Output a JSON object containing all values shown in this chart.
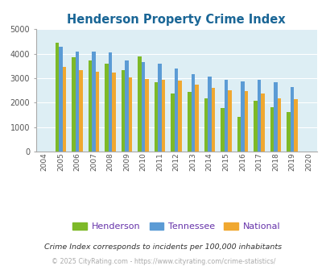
{
  "title": "Henderson Property Crime Index",
  "years": [
    2004,
    2005,
    2006,
    2007,
    2008,
    2009,
    2010,
    2011,
    2012,
    2013,
    2014,
    2015,
    2016,
    2017,
    2018,
    2019,
    2020
  ],
  "henderson": [
    null,
    4450,
    3850,
    3720,
    3580,
    3330,
    3900,
    2820,
    2380,
    2450,
    2190,
    1770,
    1430,
    2090,
    1820,
    1620,
    null
  ],
  "tennessee": [
    null,
    4300,
    4080,
    4080,
    4050,
    3740,
    3660,
    3590,
    3380,
    3180,
    3060,
    2940,
    2880,
    2930,
    2840,
    2630,
    null
  ],
  "national": [
    null,
    3450,
    3340,
    3260,
    3230,
    3040,
    2970,
    2930,
    2900,
    2750,
    2620,
    2500,
    2460,
    2360,
    2190,
    2130,
    null
  ],
  "henderson_color": "#7db928",
  "tennessee_color": "#5b9bd5",
  "national_color": "#f0a830",
  "bg_color": "#ddeef4",
  "title_color": "#1a6696",
  "legend_label_color": "#6633aa",
  "note_color": "#333333",
  "copyright_color": "#aaaaaa",
  "ylim": [
    0,
    5000
  ],
  "yticks": [
    0,
    1000,
    2000,
    3000,
    4000,
    5000
  ],
  "note_text": "Crime Index corresponds to incidents per 100,000 inhabitants",
  "copyright_text": "© 2025 CityRating.com - https://www.cityrating.com/crime-statistics/"
}
